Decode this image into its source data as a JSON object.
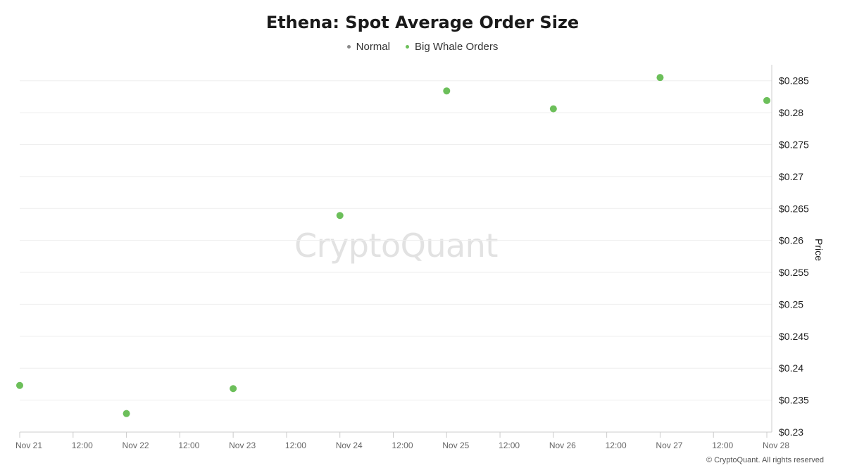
{
  "chart_data": {
    "type": "scatter",
    "title": "Ethena: Spot Average Order Size",
    "ylabel": "Price",
    "ylim": [
      0.23,
      0.2875
    ],
    "yticks": [
      "$0.23",
      "$0.235",
      "$0.24",
      "$0.245",
      "$0.25",
      "$0.255",
      "$0.26",
      "$0.265",
      "$0.27",
      "$0.275",
      "$0.28",
      "$0.285"
    ],
    "ytick_values": [
      0.23,
      0.235,
      0.24,
      0.245,
      0.25,
      0.255,
      0.26,
      0.265,
      0.27,
      0.275,
      0.28,
      0.285
    ],
    "xticks": [
      "Nov 21",
      "12:00",
      "Nov 22",
      "12:00",
      "Nov 23",
      "12:00",
      "Nov 24",
      "12:00",
      "Nov 25",
      "12:00",
      "Nov 26",
      "12:00",
      "Nov 27",
      "12:00",
      "Nov 28"
    ],
    "xtick_values": [
      0,
      0.5,
      1,
      1.5,
      2,
      2.5,
      3,
      3.5,
      4,
      4.5,
      5,
      5.5,
      6,
      6.5,
      7
    ],
    "xlim": [
      0,
      7
    ],
    "grid": true,
    "legend_position": "top-center",
    "series": [
      {
        "name": "Normal",
        "color": "#8a8a8a",
        "points": []
      },
      {
        "name": "Big Whale Orders",
        "color": "#6cbf5a",
        "points": [
          {
            "x": "Nov 21",
            "y": 0.2373
          },
          {
            "x": "Nov 22",
            "y": 0.2329
          },
          {
            "x": "Nov 23",
            "y": 0.2368
          },
          {
            "x": "Nov 24",
            "y": 0.2639
          },
          {
            "x": "Nov 25",
            "y": 0.2834
          },
          {
            "x": "Nov 26",
            "y": 0.2806
          },
          {
            "x": "Nov 27",
            "y": 0.2855
          },
          {
            "x": "Nov 28",
            "y": 0.2819
          }
        ]
      }
    ]
  },
  "watermark": "CryptoQuant",
  "copyright": "© CryptoQuant. All rights reserved"
}
